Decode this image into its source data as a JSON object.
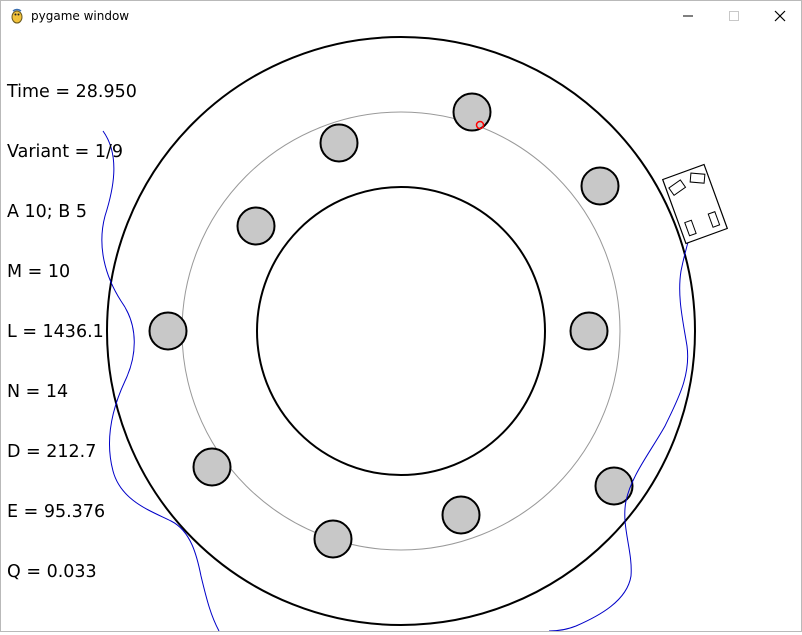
{
  "window": {
    "title": "pygame window",
    "app_icon": "pygame-snake-icon",
    "controls": {
      "minimize": "minimize-icon",
      "maximize": "maximize-icon",
      "close": "close-icon"
    }
  },
  "hud": {
    "time": "Time = 28.950",
    "variant": "Variant = 1/9",
    "ab": "A 10; B 5",
    "m": "M = 10",
    "l": "L = 1436.1",
    "n": "N = 14",
    "d": "D = 212.7",
    "e": "E = 95.376",
    "q": "Q = 0.033"
  },
  "colors": {
    "obstacle_fill": "#c8c8c8",
    "track_line": "#000000",
    "guide_circle": "#999999",
    "trajectory": "#0000c8",
    "target_marker": "#ff0000"
  }
}
